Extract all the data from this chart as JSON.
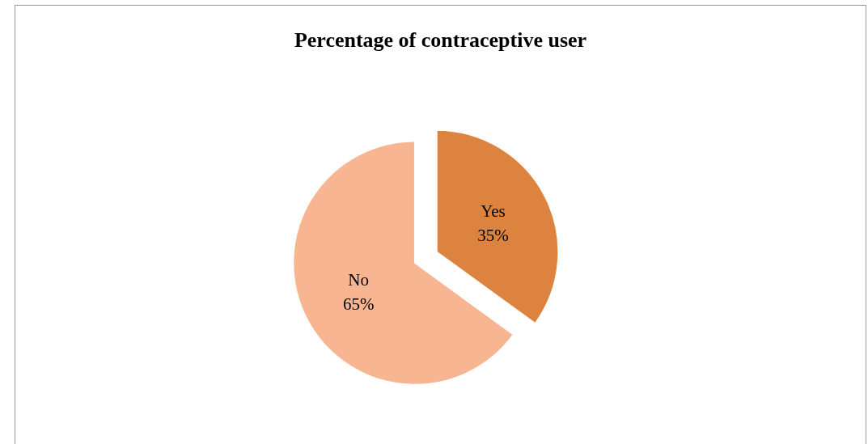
{
  "chart_data": {
    "type": "pie",
    "title": "Percentage of contraceptive user",
    "categories": [
      "Yes",
      "No"
    ],
    "values": [
      35,
      65
    ],
    "value_labels": [
      "35%",
      "65%"
    ],
    "colors": [
      "#dc843f",
      "#f8b592"
    ],
    "legend": false
  }
}
